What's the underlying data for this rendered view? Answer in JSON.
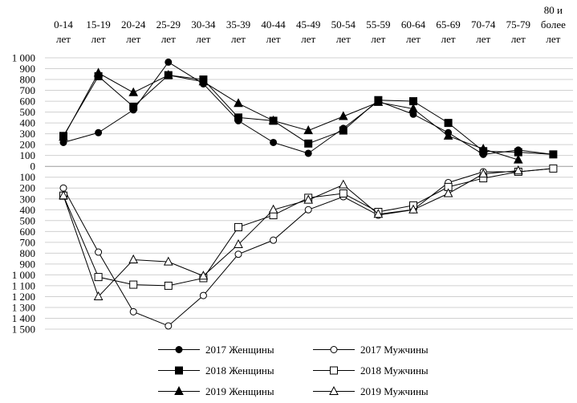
{
  "chart_data": {
    "type": "line",
    "categories": [
      [
        "0-14",
        "лет"
      ],
      [
        "15-19",
        "лет"
      ],
      [
        "20-24",
        "лет"
      ],
      [
        "25-29",
        "лет"
      ],
      [
        "30-34",
        "лет"
      ],
      [
        "35-39",
        "лет"
      ],
      [
        "40-44",
        "лет"
      ],
      [
        "45-49",
        "лет"
      ],
      [
        "50-54",
        "лет"
      ],
      [
        "55-59",
        "лет"
      ],
      [
        "60-64",
        "лет"
      ],
      [
        "65-69",
        "лет"
      ],
      [
        "70-74",
        "лет"
      ],
      [
        "75-79",
        "лет"
      ],
      [
        "80 и",
        "более",
        "лет"
      ]
    ],
    "y_ticks": [
      {
        "value": 1000,
        "label": "1 000"
      },
      {
        "value": 900,
        "label": "900"
      },
      {
        "value": 800,
        "label": "800"
      },
      {
        "value": 700,
        "label": "700"
      },
      {
        "value": 600,
        "label": "600"
      },
      {
        "value": 500,
        "label": "500"
      },
      {
        "value": 400,
        "label": "400"
      },
      {
        "value": 300,
        "label": "300"
      },
      {
        "value": 200,
        "label": "200"
      },
      {
        "value": 100,
        "label": "100"
      },
      {
        "value": 0,
        "label": "0"
      },
      {
        "value": -100,
        "label": "100"
      },
      {
        "value": -200,
        "label": "200"
      },
      {
        "value": -300,
        "label": "300"
      },
      {
        "value": -400,
        "label": "400"
      },
      {
        "value": -500,
        "label": "500"
      },
      {
        "value": -600,
        "label": "600"
      },
      {
        "value": -700,
        "label": "700"
      },
      {
        "value": -800,
        "label": "800"
      },
      {
        "value": -900,
        "label": "900"
      },
      {
        "value": -1000,
        "label": "1 000"
      },
      {
        "value": -1100,
        "label": "1 100"
      },
      {
        "value": -1200,
        "label": "1 200"
      },
      {
        "value": -1300,
        "label": "1 300"
      },
      {
        "value": -1400,
        "label": "1 400"
      },
      {
        "value": -1500,
        "label": "1 500"
      }
    ],
    "ylim": [
      -1500,
      1000
    ],
    "grid": true,
    "legend_position": "bottom",
    "series": [
      {
        "name": "2017 Женщины",
        "marker": "circle",
        "fill": "#000000",
        "values": [
          220,
          310,
          520,
          960,
          760,
          420,
          220,
          120,
          350,
          600,
          480,
          310,
          110,
          150,
          110
        ]
      },
      {
        "name": "2017 Мужчины",
        "marker": "circle",
        "fill": "#ffffff",
        "values": [
          -200,
          -790,
          -1340,
          -1470,
          -1190,
          -810,
          -680,
          -400,
          -280,
          -450,
          -400,
          -150,
          -50,
          -50,
          -20
        ]
      },
      {
        "name": "2018 Женщины",
        "marker": "square",
        "fill": "#000000",
        "values": [
          280,
          830,
          550,
          840,
          800,
          450,
          420,
          210,
          330,
          610,
          600,
          400,
          140,
          130,
          110
        ]
      },
      {
        "name": "2018 Мужчины",
        "marker": "square",
        "fill": "#ffffff",
        "values": [
          -270,
          -1020,
          -1090,
          -1100,
          -1030,
          -560,
          -450,
          -290,
          -250,
          -420,
          -360,
          -190,
          -110,
          -50,
          -20
        ]
      },
      {
        "name": "2019 Женщины",
        "marker": "triangle",
        "fill": "#000000",
        "values": [
          270,
          860,
          680,
          840,
          780,
          580,
          420,
          330,
          460,
          590,
          530,
          280,
          160,
          60,
          null
        ]
      },
      {
        "name": "2019 Мужчины",
        "marker": "triangle",
        "fill": "#ffffff",
        "values": [
          -270,
          -1200,
          -860,
          -880,
          -1010,
          -720,
          -400,
          -310,
          -170,
          -440,
          -400,
          -250,
          -70,
          -40,
          null
        ]
      }
    ]
  }
}
